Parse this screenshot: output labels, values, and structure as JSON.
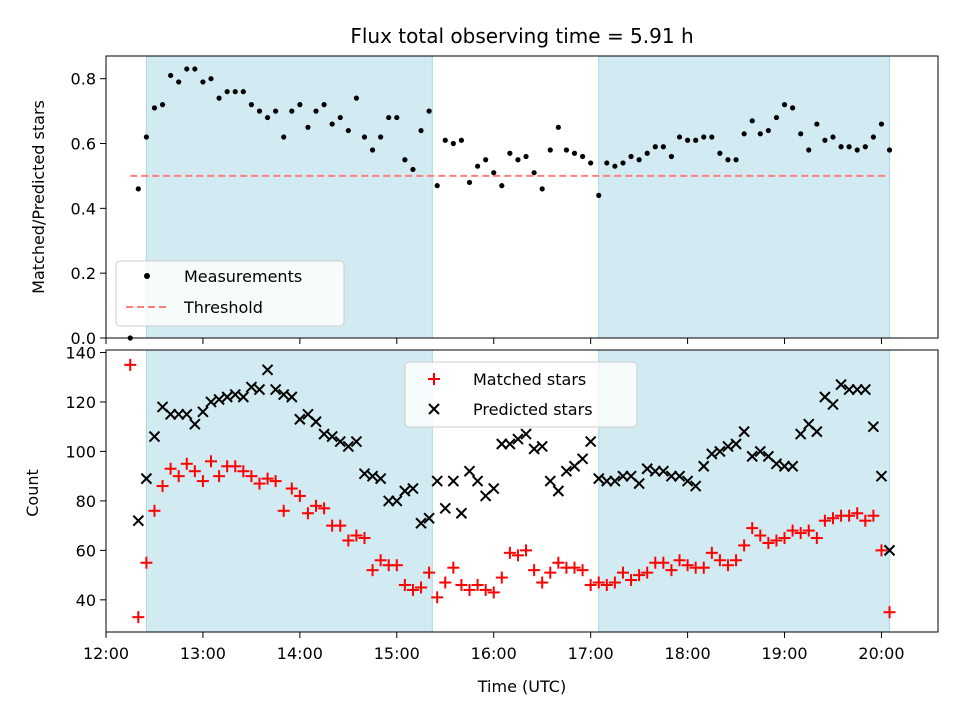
{
  "chart_data": [
    {
      "type": "scatter",
      "title": "Flux total observing time = 5.91 h",
      "xlabel": "",
      "ylabel": "Matched/Predicted stars",
      "xlim": [
        "12:00",
        "20:35"
      ],
      "ylim": [
        0,
        0.87
      ],
      "yticks": [
        "0.0",
        "0.2",
        "0.4",
        "0.6",
        "0.8"
      ],
      "yticks_values": [
        0,
        0.2,
        0.4,
        0.6,
        0.8
      ],
      "legend_position": "lower-left",
      "shaded_intervals": [
        [
          "12:25",
          "15:22"
        ],
        [
          "17:05",
          "20:05"
        ]
      ],
      "shade_color": "#add8e6",
      "series": [
        {
          "name": "Measurements",
          "marker": "dot",
          "color": "#000000",
          "x": [
            "12:15",
            "12:20",
            "12:25",
            "12:30",
            "12:35",
            "12:40",
            "12:45",
            "12:50",
            "12:55",
            "13:00",
            "13:05",
            "13:10",
            "13:15",
            "13:20",
            "13:25",
            "13:30",
            "13:35",
            "13:40",
            "13:45",
            "13:50",
            "13:55",
            "14:00",
            "14:05",
            "14:10",
            "14:15",
            "14:20",
            "14:25",
            "14:30",
            "14:35",
            "14:40",
            "14:45",
            "14:50",
            "14:55",
            "15:00",
            "15:05",
            "15:10",
            "15:15",
            "15:20",
            "15:25",
            "15:30",
            "15:35",
            "15:40",
            "15:45",
            "15:50",
            "15:55",
            "16:00",
            "16:05",
            "16:10",
            "16:15",
            "16:20",
            "16:25",
            "16:30",
            "16:35",
            "16:40",
            "16:45",
            "16:50",
            "16:55",
            "17:00",
            "17:05",
            "17:10",
            "17:15",
            "17:20",
            "17:25",
            "17:30",
            "17:35",
            "17:40",
            "17:45",
            "17:50",
            "17:55",
            "18:00",
            "18:05",
            "18:10",
            "18:15",
            "18:20",
            "18:25",
            "18:30",
            "18:35",
            "18:40",
            "18:45",
            "18:50",
            "18:55",
            "19:00",
            "19:05",
            "19:10",
            "19:15",
            "19:20",
            "19:25",
            "19:30",
            "19:35",
            "19:40",
            "19:45",
            "19:50",
            "19:55",
            "20:00",
            "20:05"
          ],
          "y": [
            0.0,
            0.46,
            0.62,
            0.71,
            0.72,
            0.81,
            0.79,
            0.83,
            0.83,
            0.79,
            0.8,
            0.74,
            0.76,
            0.76,
            0.76,
            0.72,
            0.7,
            0.68,
            0.7,
            0.62,
            0.7,
            0.72,
            0.65,
            0.7,
            0.72,
            0.66,
            0.68,
            0.64,
            0.74,
            0.62,
            0.58,
            0.62,
            0.68,
            0.68,
            0.55,
            0.52,
            0.64,
            0.7,
            0.47,
            0.61,
            0.6,
            0.61,
            0.48,
            0.53,
            0.55,
            0.51,
            0.47,
            0.57,
            0.55,
            0.56,
            0.51,
            0.46,
            0.58,
            0.65,
            0.58,
            0.57,
            0.56,
            0.54,
            0.44,
            0.54,
            0.53,
            0.54,
            0.56,
            0.55,
            0.57,
            0.59,
            0.59,
            0.56,
            0.62,
            0.61,
            0.61,
            0.62,
            0.62,
            0.57,
            0.55,
            0.55,
            0.63,
            0.67,
            0.63,
            0.64,
            0.68,
            0.72,
            0.71,
            0.63,
            0.58,
            0.66,
            0.61,
            0.62,
            0.59,
            0.59,
            0.58,
            0.59,
            0.62,
            0.66,
            0.58
          ]
        },
        {
          "name": "Threshold",
          "marker": "dashed-line",
          "color": "#ff7f7f",
          "x": [
            "12:15",
            "20:05"
          ],
          "y": [
            0.5,
            0.5
          ]
        }
      ]
    },
    {
      "type": "scatter",
      "title": "",
      "xlabel": "Time (UTC)",
      "ylabel": "Count",
      "xlim": [
        "12:00",
        "20:35"
      ],
      "ylim": [
        27,
        141
      ],
      "yticks": [
        "40",
        "60",
        "80",
        "100",
        "120",
        "140"
      ],
      "yticks_values": [
        40,
        60,
        80,
        100,
        120,
        140
      ],
      "xticks": [
        "12:00",
        "13:00",
        "14:00",
        "15:00",
        "16:00",
        "17:00",
        "18:00",
        "19:00",
        "20:00"
      ],
      "legend_position": "upper-center",
      "shaded_intervals": [
        [
          "12:25",
          "15:22"
        ],
        [
          "17:05",
          "20:05"
        ]
      ],
      "shade_color": "#add8e6",
      "series": [
        {
          "name": "Matched stars",
          "marker": "plus",
          "color": "#ff0000",
          "x": [
            "12:15",
            "12:20",
            "12:25",
            "12:30",
            "12:35",
            "12:40",
            "12:45",
            "12:50",
            "12:55",
            "13:00",
            "13:05",
            "13:10",
            "13:15",
            "13:20",
            "13:25",
            "13:30",
            "13:35",
            "13:40",
            "13:45",
            "13:50",
            "13:55",
            "14:00",
            "14:05",
            "14:10",
            "14:15",
            "14:20",
            "14:25",
            "14:30",
            "14:35",
            "14:40",
            "14:45",
            "14:50",
            "14:55",
            "15:00",
            "15:05",
            "15:10",
            "15:15",
            "15:20",
            "15:25",
            "15:30",
            "15:35",
            "15:40",
            "15:45",
            "15:50",
            "15:55",
            "16:00",
            "16:05",
            "16:10",
            "16:15",
            "16:20",
            "16:25",
            "16:30",
            "16:35",
            "16:40",
            "16:45",
            "16:50",
            "16:55",
            "17:00",
            "17:05",
            "17:10",
            "17:15",
            "17:20",
            "17:25",
            "17:30",
            "17:35",
            "17:40",
            "17:45",
            "17:50",
            "17:55",
            "18:00",
            "18:05",
            "18:10",
            "18:15",
            "18:20",
            "18:25",
            "18:30",
            "18:35",
            "18:40",
            "18:45",
            "18:50",
            "18:55",
            "19:00",
            "19:05",
            "19:10",
            "19:15",
            "19:20",
            "19:25",
            "19:30",
            "19:35",
            "19:40",
            "19:45",
            "19:50",
            "19:55",
            "20:00",
            "20:05"
          ],
          "y": [
            135,
            33,
            55,
            76,
            86,
            93,
            90,
            95,
            92,
            88,
            96,
            90,
            94,
            94,
            92,
            90,
            87,
            89,
            88,
            76,
            85,
            82,
            75,
            78,
            77,
            70,
            70,
            64,
            66,
            65,
            52,
            56,
            54,
            54,
            46,
            44,
            45,
            51,
            41,
            47,
            53,
            46,
            44,
            46,
            44,
            43,
            49,
            59,
            58,
            60,
            52,
            47,
            51,
            55,
            53,
            53,
            52,
            46,
            47,
            46,
            47,
            51,
            48,
            50,
            51,
            55,
            55,
            52,
            56,
            54,
            53,
            53,
            59,
            56,
            54,
            56,
            62,
            69,
            66,
            63,
            64,
            65,
            68,
            67,
            68,
            65,
            72,
            73,
            74,
            74,
            75,
            72,
            74,
            60,
            35
          ]
        },
        {
          "name": "Predicted stars",
          "marker": "x",
          "color": "#000000",
          "x": [
            "12:20",
            "12:25",
            "12:30",
            "12:35",
            "12:40",
            "12:45",
            "12:50",
            "12:55",
            "13:00",
            "13:05",
            "13:10",
            "13:15",
            "13:20",
            "13:25",
            "13:30",
            "13:35",
            "13:40",
            "13:45",
            "13:50",
            "13:55",
            "14:00",
            "14:05",
            "14:10",
            "14:15",
            "14:20",
            "14:25",
            "14:30",
            "14:35",
            "14:40",
            "14:45",
            "14:50",
            "14:55",
            "15:00",
            "15:05",
            "15:10",
            "15:15",
            "15:20",
            "15:25",
            "15:30",
            "15:35",
            "15:40",
            "15:45",
            "15:50",
            "15:55",
            "16:00",
            "16:05",
            "16:10",
            "16:15",
            "16:20",
            "16:25",
            "16:30",
            "16:35",
            "16:40",
            "16:45",
            "16:50",
            "16:55",
            "17:00",
            "17:05",
            "17:10",
            "17:15",
            "17:20",
            "17:25",
            "17:30",
            "17:35",
            "17:40",
            "17:45",
            "17:50",
            "17:55",
            "18:00",
            "18:05",
            "18:10",
            "18:15",
            "18:20",
            "18:25",
            "18:30",
            "18:35",
            "18:40",
            "18:45",
            "18:50",
            "18:55",
            "19:00",
            "19:05",
            "19:10",
            "19:15",
            "19:20",
            "19:25",
            "19:30",
            "19:35",
            "19:40",
            "19:45",
            "19:50",
            "19:55",
            "20:00",
            "20:05"
          ],
          "y": [
            72,
            89,
            106,
            118,
            115,
            115,
            115,
            111,
            116,
            120,
            121,
            122,
            123,
            122,
            126,
            125,
            133,
            125,
            123,
            122,
            113,
            115,
            112,
            107,
            106,
            104,
            102,
            104,
            91,
            90,
            89,
            80,
            80,
            84,
            85,
            71,
            73,
            88,
            77,
            88,
            75,
            92,
            88,
            82,
            85,
            103,
            103,
            105,
            107,
            101,
            102,
            88,
            84,
            92,
            94,
            97,
            104,
            89,
            88,
            88,
            90,
            90,
            87,
            93,
            92,
            92,
            90,
            90,
            88,
            86,
            94,
            99,
            100,
            102,
            103,
            108,
            98,
            100,
            98,
            95,
            94,
            94,
            107,
            111,
            108,
            122,
            119,
            127,
            125,
            125,
            125,
            110,
            90,
            60
          ]
        }
      ]
    }
  ]
}
